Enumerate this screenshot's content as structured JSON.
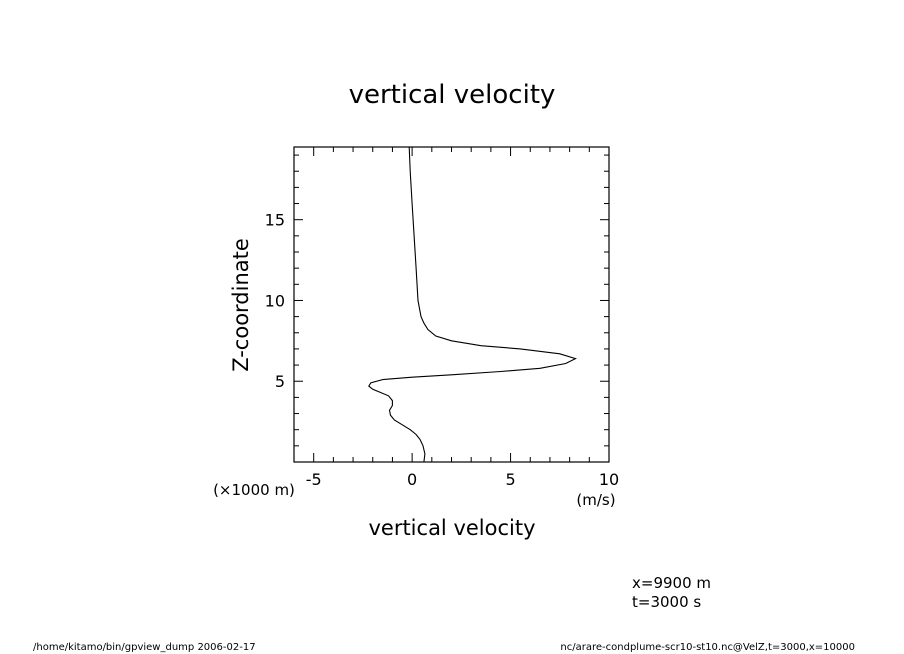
{
  "chart_data": {
    "type": "line",
    "title": "vertical velocity",
    "xlabel": "vertical velocity",
    "ylabel": "Z-coordinate",
    "x_unit": "(m/s)",
    "y_unit": "(×1000 m)",
    "xlim": [
      -6,
      10
    ],
    "ylim": [
      0,
      19.5
    ],
    "x_ticks": [
      -5,
      0,
      5,
      10
    ],
    "y_ticks": [
      5,
      10,
      15
    ],
    "grid": false,
    "series": [
      {
        "x": [
          0.6,
          0.65,
          0.55,
          0.4,
          0.2,
          -0.1,
          -0.5,
          -0.9,
          -1.1,
          -1.15,
          -1.0,
          -1.0,
          -1.2,
          -1.6,
          -2.0,
          -2.2,
          -2.1,
          -1.5,
          0.0,
          2.0,
          4.5,
          6.5,
          7.8,
          8.3,
          7.5,
          5.5,
          3.5,
          2.0,
          1.2,
          0.8,
          0.6,
          0.45,
          0.3,
          0.2,
          0.1,
          0.0,
          -0.1,
          -0.15
        ],
        "y": [
          0.0,
          0.5,
          1.0,
          1.4,
          1.7,
          2.0,
          2.3,
          2.6,
          2.9,
          3.2,
          3.5,
          3.8,
          4.1,
          4.3,
          4.5,
          4.7,
          4.9,
          5.1,
          5.25,
          5.4,
          5.6,
          5.8,
          6.1,
          6.4,
          6.7,
          7.0,
          7.2,
          7.5,
          7.8,
          8.2,
          8.6,
          9.0,
          10.0,
          12.0,
          14.0,
          16.0,
          18.0,
          19.5
        ]
      }
    ]
  },
  "annotations": {
    "x_info": "x=9900 m",
    "t_info": "t=3000 s"
  },
  "footer": {
    "left": "/home/kitamo/bin/gpview_dump  2006-02-17",
    "right": "nc/arare-condplume-scr10-st10.nc@VelZ,t=3000,x=10000"
  }
}
